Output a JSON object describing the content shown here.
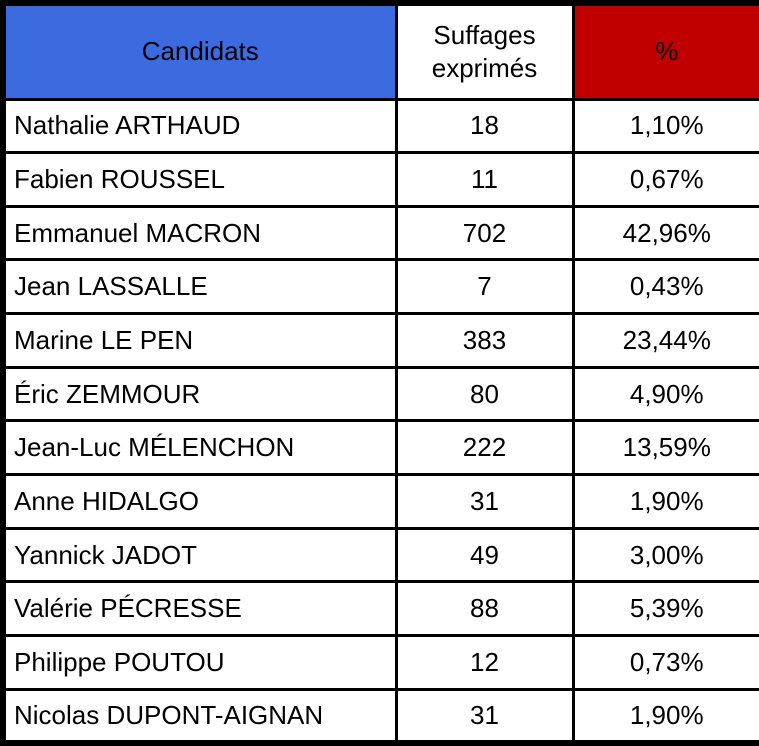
{
  "colors": {
    "header_blue": "#3c6be0",
    "header_red": "#c00000",
    "border": "#000000",
    "header_text_on_blue": "#ffffff",
    "header_text_on_red": "#ffffff",
    "body_text": "#000000"
  },
  "chart_data": {
    "type": "table",
    "columns": [
      "Candidats",
      "Suffages exprimés",
      "%"
    ],
    "rows": [
      [
        "Nathalie ARTHAUD",
        "18",
        "1,10%"
      ],
      [
        "Fabien ROUSSEL",
        "11",
        "0,67%"
      ],
      [
        "Emmanuel MACRON",
        "702",
        "42,96%"
      ],
      [
        "Jean LASSALLE",
        "7",
        "0,43%"
      ],
      [
        "Marine LE PEN",
        "383",
        "23,44%"
      ],
      [
        "Éric ZEMMOUR",
        "80",
        "4,90%"
      ],
      [
        "Jean-Luc MÉLENCHON",
        "222",
        "13,59%"
      ],
      [
        "Anne HIDALGO",
        "31",
        "1,90%"
      ],
      [
        "Yannick JADOT",
        "49",
        "3,00%"
      ],
      [
        "Valérie PÉCRESSE",
        "88",
        "5,39%"
      ],
      [
        "Philippe POUTOU",
        "12",
        "0,73%"
      ],
      [
        "Nicolas DUPONT-AIGNAN",
        "31",
        "1,90%"
      ]
    ]
  }
}
